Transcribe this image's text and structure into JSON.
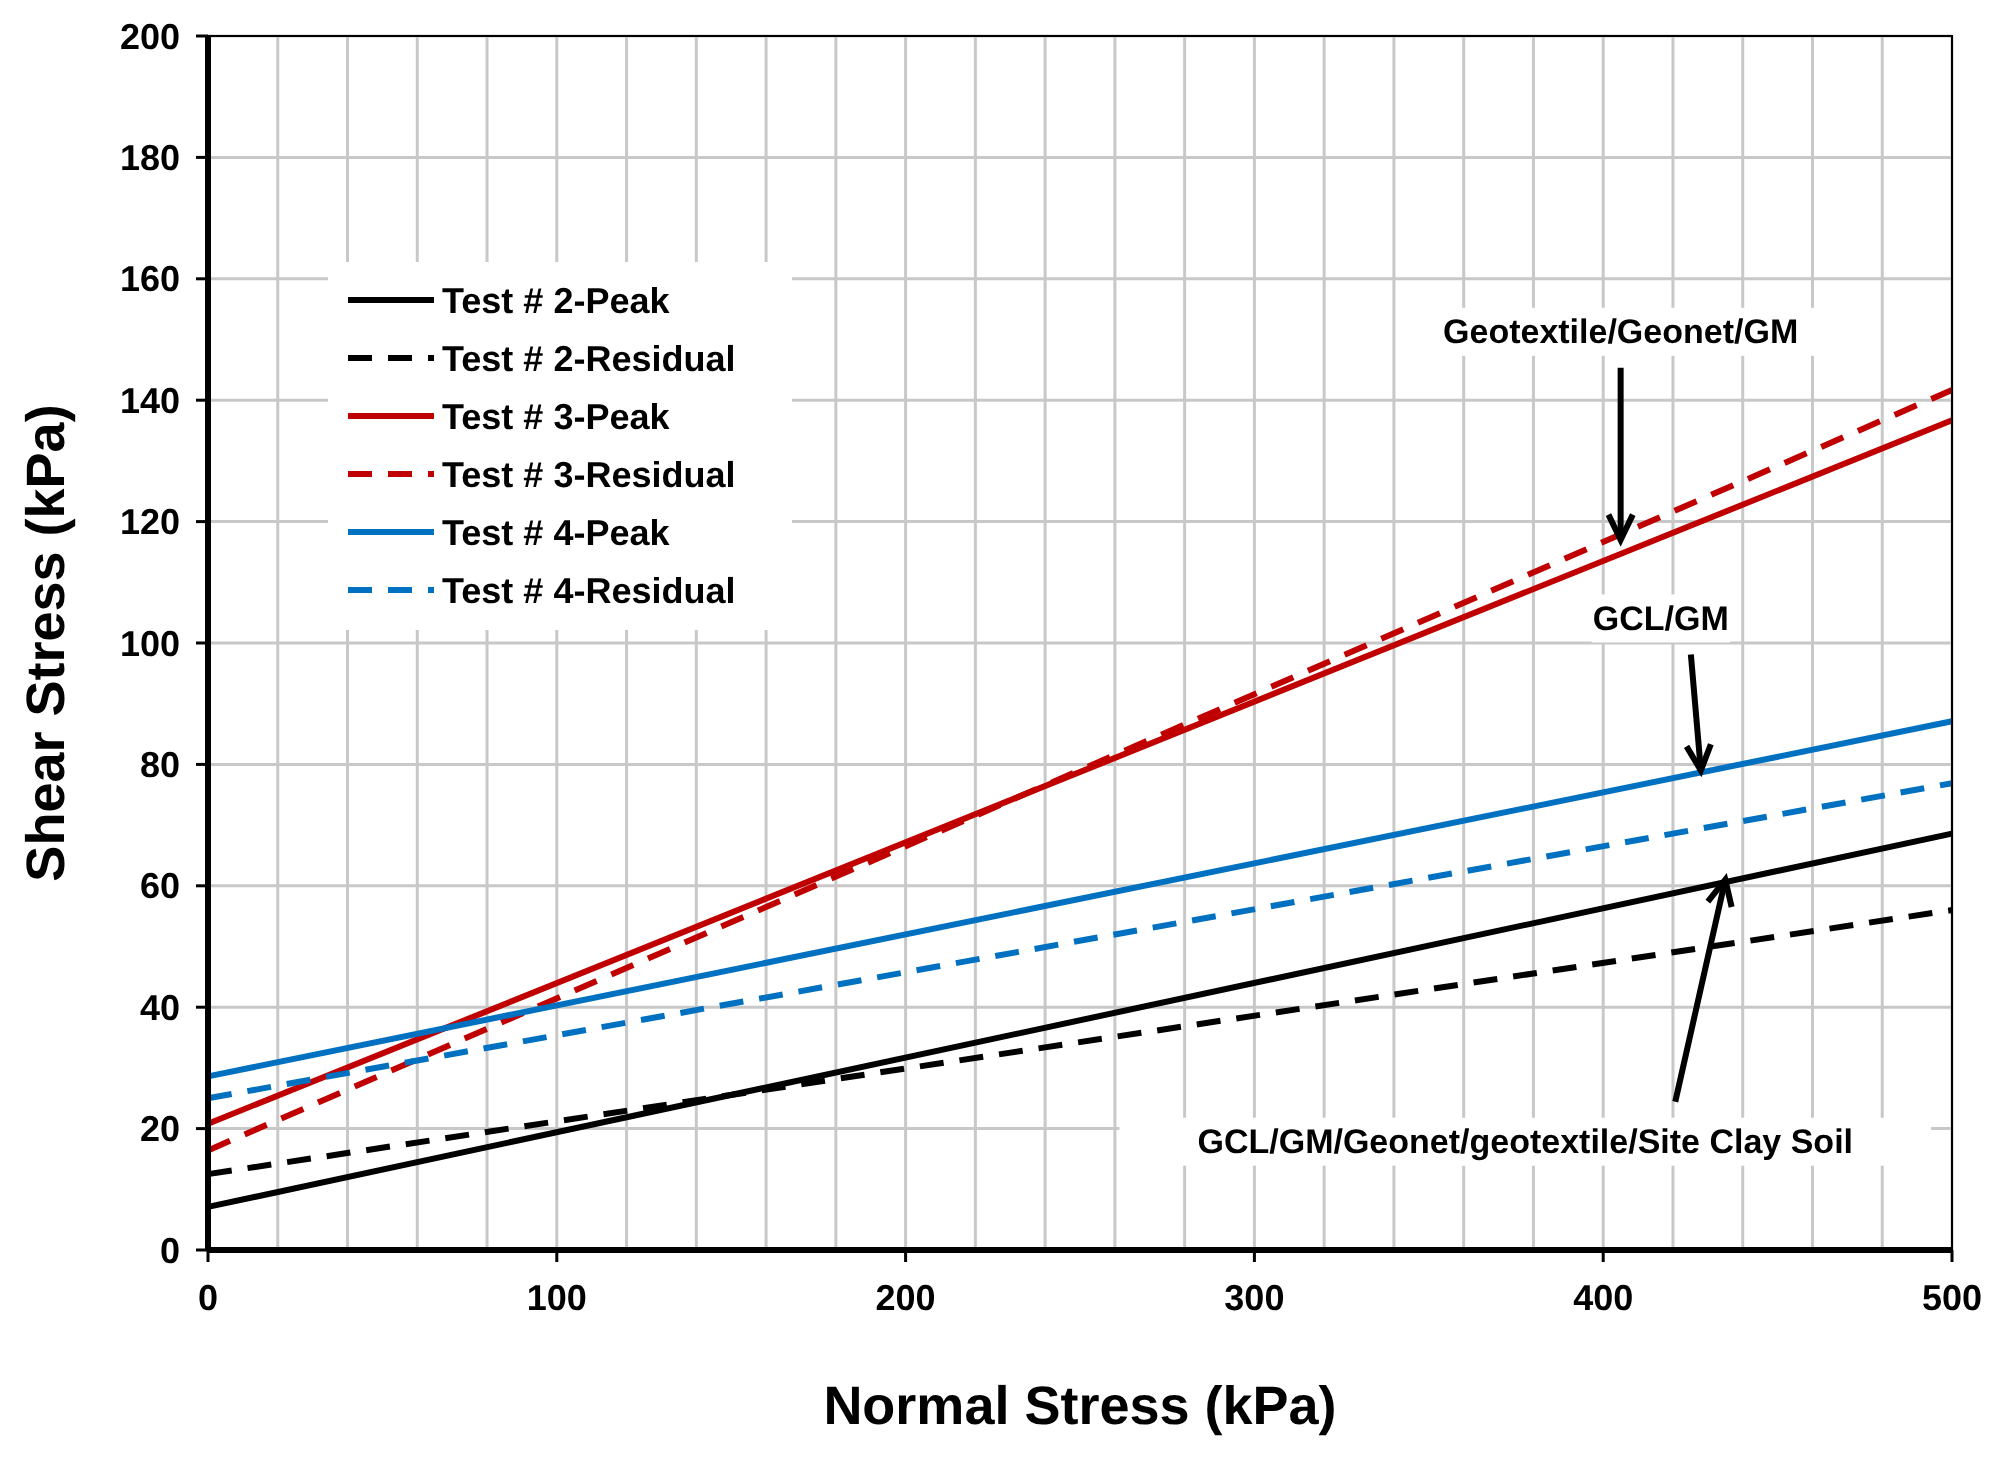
{
  "chart_data": {
    "type": "line",
    "xlabel": "Normal Stress (kPa)",
    "ylabel": "Shear Stress (kPa)",
    "xlim": [
      0,
      500
    ],
    "xticks": [
      0,
      100,
      200,
      300,
      400,
      500
    ],
    "ylim": [
      0,
      200
    ],
    "yticks": [
      0,
      20,
      40,
      60,
      80,
      100,
      120,
      140,
      160,
      180,
      200
    ],
    "grid": true,
    "legend": "top left",
    "marker": "none",
    "x": [
      0,
      500
    ],
    "series": [
      {
        "name": "Test # 2-Peak",
        "color": "#000000",
        "line_style": "solid",
        "values": [
          7.1,
          68.6
        ]
      },
      {
        "name": "Test # 2-Residual",
        "color": "#000000",
        "line_style": "dashed",
        "values": [
          12.5,
          56
        ]
      },
      {
        "name": "Test # 3-Peak",
        "color": "#c00000",
        "line_style": "solid",
        "values": [
          20.8,
          136.7
        ]
      },
      {
        "name": "Test # 3-Residual",
        "color": "#c00000",
        "line_style": "dashed",
        "values": [
          16.4,
          141.7
        ]
      },
      {
        "name": "Test # 4-Peak",
        "color": "#0070c0",
        "line_style": "solid",
        "values": [
          28.6,
          87.1
        ]
      },
      {
        "name": "Test # 4-Residual",
        "color": "#0070c0",
        "line_style": "dashed",
        "values": [
          25,
          76.9
        ]
      }
    ],
    "annotations": [
      {
        "text": "Geotextile/Geonet/GM",
        "x": 405,
        "y": 117
      },
      {
        "text": "GCL/GM",
        "x": 428,
        "y": 79
      },
      {
        "text": "GCL/GM/Geonet/geotextile/Site Clay Soil",
        "x": 435,
        "y": 61
      }
    ]
  }
}
